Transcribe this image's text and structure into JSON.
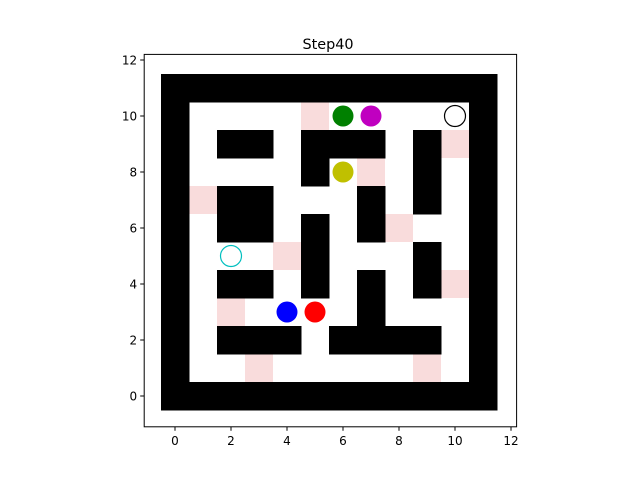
{
  "title": "Step40",
  "axes": {
    "xlim": [
      -0.5,
      11.5
    ],
    "ylim": [
      -0.5,
      11.5
    ],
    "axes_box": [
      -1.1,
      12.2,
      -1.1,
      12.2
    ],
    "xticks": [
      0,
      2,
      4,
      6,
      8,
      10,
      12
    ],
    "yticks": [
      0,
      2,
      4,
      6,
      8,
      10,
      12
    ]
  },
  "colors": {
    "wall": "#000000",
    "floor": "#ffffff",
    "highlight": "#f9dcdc"
  },
  "walls": [
    [
      0,
      0
    ],
    [
      1,
      0
    ],
    [
      2,
      0
    ],
    [
      3,
      0
    ],
    [
      4,
      0
    ],
    [
      5,
      0
    ],
    [
      6,
      0
    ],
    [
      7,
      0
    ],
    [
      8,
      0
    ],
    [
      9,
      0
    ],
    [
      10,
      0
    ],
    [
      11,
      0
    ],
    [
      0,
      11
    ],
    [
      1,
      11
    ],
    [
      2,
      11
    ],
    [
      3,
      11
    ],
    [
      4,
      11
    ],
    [
      5,
      11
    ],
    [
      6,
      11
    ],
    [
      7,
      11
    ],
    [
      8,
      11
    ],
    [
      9,
      11
    ],
    [
      10,
      11
    ],
    [
      11,
      11
    ],
    [
      0,
      1
    ],
    [
      0,
      2
    ],
    [
      0,
      3
    ],
    [
      0,
      4
    ],
    [
      0,
      5
    ],
    [
      0,
      6
    ],
    [
      0,
      7
    ],
    [
      0,
      8
    ],
    [
      0,
      9
    ],
    [
      0,
      10
    ],
    [
      11,
      1
    ],
    [
      11,
      2
    ],
    [
      11,
      3
    ],
    [
      11,
      4
    ],
    [
      11,
      5
    ],
    [
      11,
      6
    ],
    [
      11,
      7
    ],
    [
      11,
      8
    ],
    [
      11,
      9
    ],
    [
      11,
      10
    ],
    [
      2,
      9
    ],
    [
      3,
      9
    ],
    [
      5,
      9
    ],
    [
      6,
      9
    ],
    [
      7,
      9
    ],
    [
      5,
      8
    ],
    [
      9,
      9
    ],
    [
      9,
      8
    ],
    [
      9,
      7
    ],
    [
      2,
      7
    ],
    [
      3,
      7
    ],
    [
      2,
      6
    ],
    [
      3,
      6
    ],
    [
      7,
      7
    ],
    [
      7,
      6
    ],
    [
      5,
      6
    ],
    [
      5,
      5
    ],
    [
      5,
      4
    ],
    [
      9,
      5
    ],
    [
      9,
      4
    ],
    [
      2,
      4
    ],
    [
      3,
      4
    ],
    [
      7,
      4
    ],
    [
      7,
      3
    ],
    [
      2,
      2
    ],
    [
      3,
      2
    ],
    [
      4,
      2
    ],
    [
      6,
      2
    ],
    [
      7,
      2
    ],
    [
      8,
      2
    ],
    [
      9,
      2
    ]
  ],
  "highlights": [
    [
      5,
      10
    ],
    [
      10,
      9
    ],
    [
      7,
      8
    ],
    [
      1,
      7
    ],
    [
      8,
      6
    ],
    [
      4,
      5
    ],
    [
      10,
      4
    ],
    [
      2,
      3
    ],
    [
      3,
      1
    ],
    [
      9,
      1
    ]
  ],
  "agents": [
    {
      "x": 6,
      "y": 10,
      "color": "#008000",
      "filled": true,
      "icon": "green-agent"
    },
    {
      "x": 7,
      "y": 10,
      "color": "#c000c0",
      "filled": true,
      "icon": "magenta-agent"
    },
    {
      "x": 6,
      "y": 8,
      "color": "#c0c000",
      "filled": true,
      "icon": "yellow-agent"
    },
    {
      "x": 4,
      "y": 3,
      "color": "#0000ff",
      "filled": true,
      "icon": "blue-agent"
    },
    {
      "x": 5,
      "y": 3,
      "color": "#ff0000",
      "filled": true,
      "icon": "red-agent"
    }
  ],
  "goals": [
    {
      "x": 10,
      "y": 10,
      "color": "#000000",
      "filled": false,
      "icon": "black-goal-ring"
    },
    {
      "x": 2,
      "y": 5,
      "color": "#00bfbf",
      "filled": false,
      "icon": "cyan-goal-ring"
    }
  ]
}
